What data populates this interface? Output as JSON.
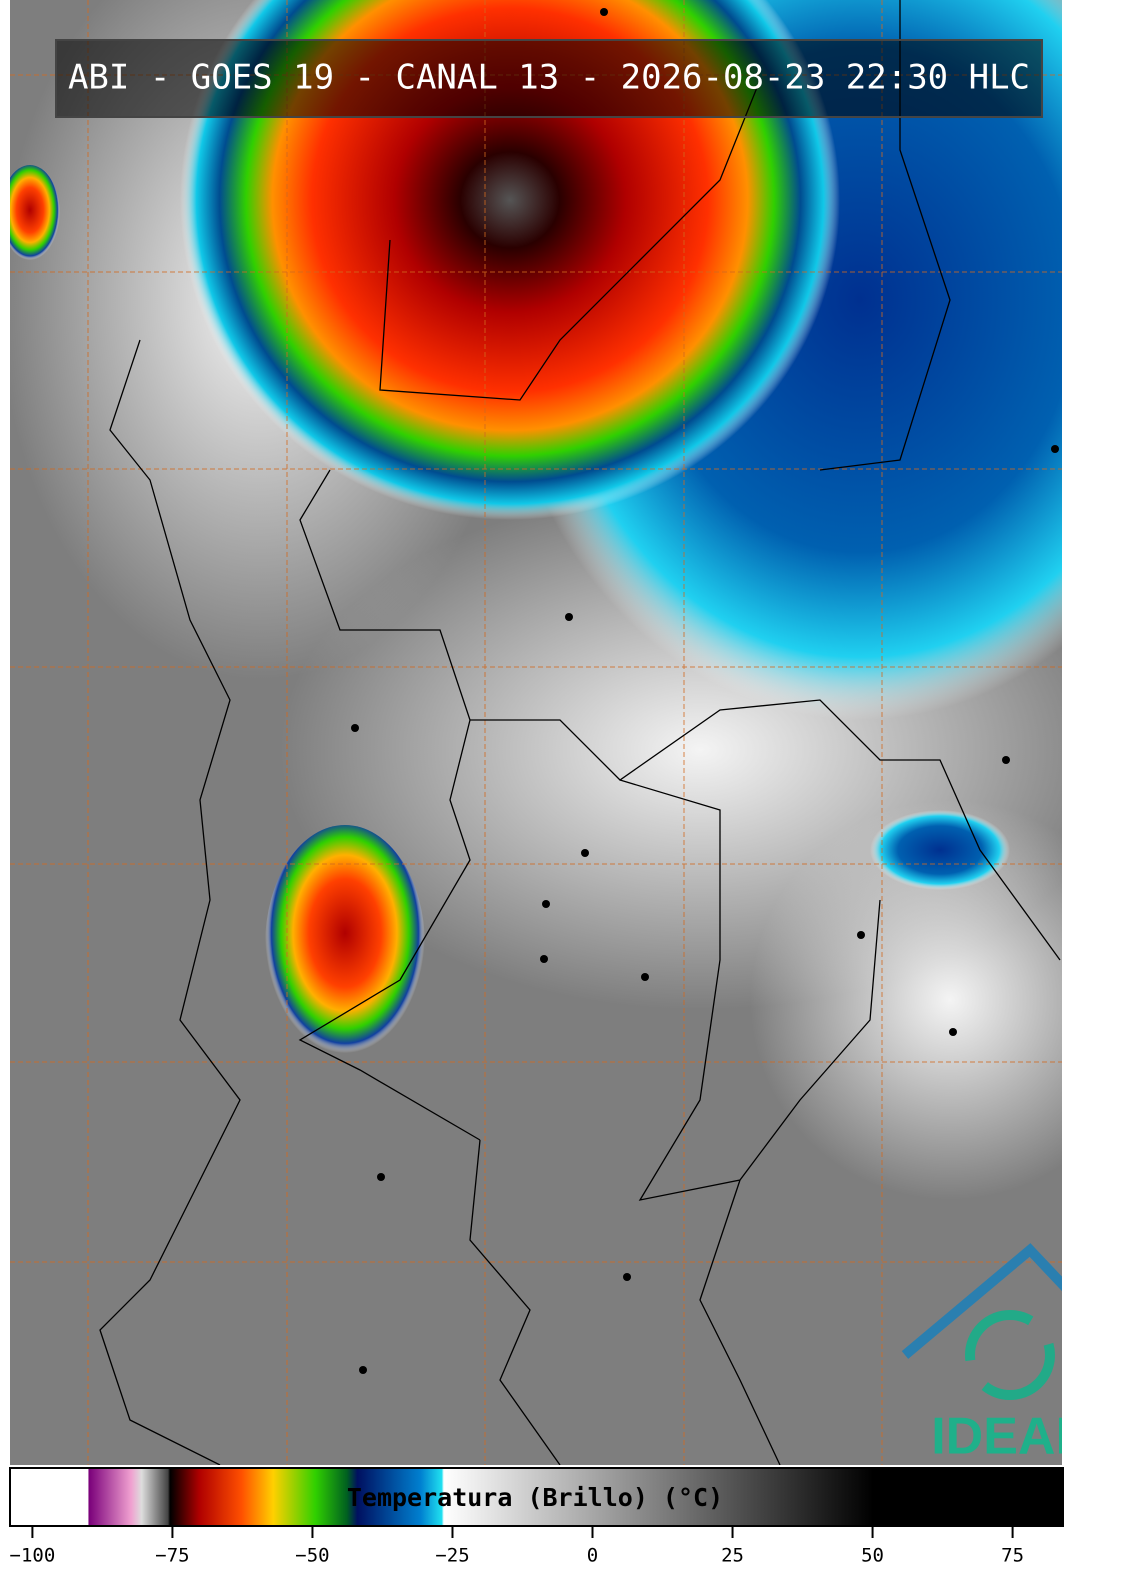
{
  "header": {
    "title": "ABI - GOES 19 - CANAL 13 - 2026-08-23 22:30 HLC"
  },
  "logo": {
    "text": "IDEAM"
  },
  "colorbar": {
    "label": "Temperatura (Brillo) (°C)",
    "xlim": [
      -104,
      84
    ],
    "xticks": [
      {
        "value": -100,
        "label": "−100"
      },
      {
        "value": -75,
        "label": "−75"
      },
      {
        "value": -50,
        "label": "−50"
      },
      {
        "value": -25,
        "label": "−25"
      },
      0,
      25,
      50,
      75
    ]
  }
}
